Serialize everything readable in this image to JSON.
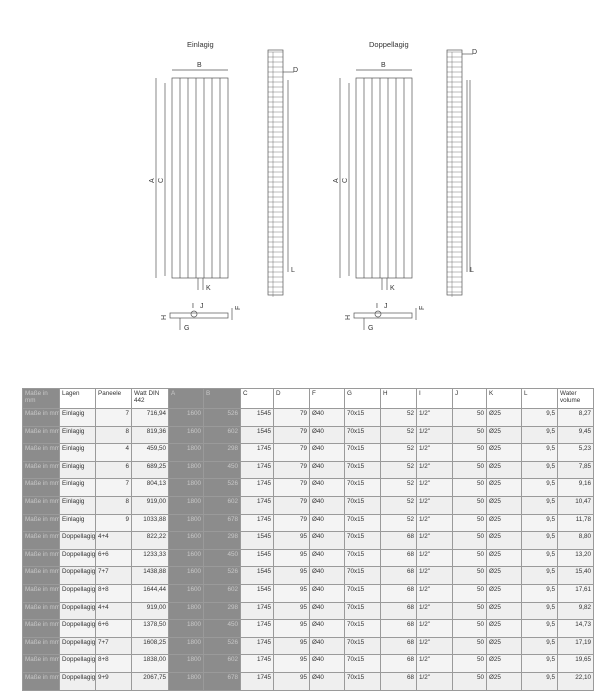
{
  "drawings": {
    "single": {
      "title": "Einlagig",
      "labels": {
        "A": "A",
        "B": "B",
        "C": "C",
        "D": "D",
        "F": "F",
        "G": "G",
        "H": "H",
        "I": "I",
        "J": "J",
        "K": "K",
        "L": "L"
      }
    },
    "double": {
      "title": "Doppellagig",
      "labels": {
        "A": "A",
        "B": "B",
        "C": "C",
        "D": "D",
        "F": "F",
        "G": "G",
        "H": "H",
        "I": "I",
        "J": "J",
        "K": "K",
        "L": "L"
      }
    }
  },
  "table": {
    "headers": [
      "Maße in mm",
      "Lagen",
      "Paneele",
      "Watt DIN 442",
      "A",
      "B",
      "C",
      "D",
      "F",
      "G",
      "H",
      "I",
      "J",
      "K",
      "L",
      "Water volume"
    ],
    "rows": [
      [
        "Maße in mm",
        "Einlagig",
        "7",
        "716,94",
        "1600",
        "526",
        "1545",
        "79",
        "Ø40",
        "70x15",
        "52",
        "1/2\"",
        "50",
        "Ø25",
        "9,5",
        "8,27"
      ],
      [
        "Maße in mm",
        "Einlagig",
        "8",
        "819,36",
        "1600",
        "602",
        "1545",
        "79",
        "Ø40",
        "70x15",
        "52",
        "1/2\"",
        "50",
        "Ø25",
        "9,5",
        "9,45"
      ],
      [
        "Maße in mm",
        "Einlagig",
        "4",
        "459,50",
        "1800",
        "298",
        "1745",
        "79",
        "Ø40",
        "70x15",
        "52",
        "1/2\"",
        "50",
        "Ø25",
        "9,5",
        "5,23"
      ],
      [
        "Maße in mm",
        "Einlagig",
        "6",
        "689,25",
        "1800",
        "450",
        "1745",
        "79",
        "Ø40",
        "70x15",
        "52",
        "1/2\"",
        "50",
        "Ø25",
        "9,5",
        "7,85"
      ],
      [
        "Maße in mm",
        "Einlagig",
        "7",
        "804,13",
        "1800",
        "526",
        "1745",
        "79",
        "Ø40",
        "70x15",
        "52",
        "1/2\"",
        "50",
        "Ø25",
        "9,5",
        "9,16"
      ],
      [
        "Maße in mm",
        "Einlagig",
        "8",
        "919,00",
        "1800",
        "602",
        "1745",
        "79",
        "Ø40",
        "70x15",
        "52",
        "1/2\"",
        "50",
        "Ø25",
        "9,5",
        "10,47"
      ],
      [
        "Maße in mm",
        "Einlagig",
        "9",
        "1033,88",
        "1800",
        "678",
        "1745",
        "79",
        "Ø40",
        "70x15",
        "52",
        "1/2\"",
        "50",
        "Ø25",
        "9,5",
        "11,78"
      ],
      [
        "Maße in mm",
        "Doppellagig",
        "4+4",
        "822,22",
        "1600",
        "298",
        "1545",
        "95",
        "Ø40",
        "70x15",
        "68",
        "1/2\"",
        "50",
        "Ø25",
        "9,5",
        "8,80"
      ],
      [
        "Maße in mm",
        "Doppellagig",
        "6+6",
        "1233,33",
        "1600",
        "450",
        "1545",
        "95",
        "Ø40",
        "70x15",
        "68",
        "1/2\"",
        "50",
        "Ø25",
        "9,5",
        "13,20"
      ],
      [
        "Maße in mm",
        "Doppellagig",
        "7+7",
        "1438,88",
        "1600",
        "526",
        "1545",
        "95",
        "Ø40",
        "70x15",
        "68",
        "1/2\"",
        "50",
        "Ø25",
        "9,5",
        "15,40"
      ],
      [
        "Maße in mm",
        "Doppellagig",
        "8+8",
        "1644,44",
        "1600",
        "602",
        "1545",
        "95",
        "Ø40",
        "70x15",
        "68",
        "1/2\"",
        "50",
        "Ø25",
        "9,5",
        "17,61"
      ],
      [
        "Maße in mm",
        "Doppellagig",
        "4+4",
        "919,00",
        "1800",
        "298",
        "1745",
        "95",
        "Ø40",
        "70x15",
        "68",
        "1/2\"",
        "50",
        "Ø25",
        "9,5",
        "9,82"
      ],
      [
        "Maße in mm",
        "Doppellagig",
        "6+6",
        "1378,50",
        "1800",
        "450",
        "1745",
        "95",
        "Ø40",
        "70x15",
        "68",
        "1/2\"",
        "50",
        "Ø25",
        "9,5",
        "14,73"
      ],
      [
        "Maße in mm",
        "Doppellagig",
        "7+7",
        "1608,25",
        "1800",
        "526",
        "1745",
        "95",
        "Ø40",
        "70x15",
        "68",
        "1/2\"",
        "50",
        "Ø25",
        "9,5",
        "17,19"
      ],
      [
        "Maße in mm",
        "Doppellagig",
        "8+8",
        "1838,00",
        "1800",
        "602",
        "1745",
        "95",
        "Ø40",
        "70x15",
        "68",
        "1/2\"",
        "50",
        "Ø25",
        "9,5",
        "19,65"
      ],
      [
        "Maße in mm",
        "Doppellagig",
        "9+9",
        "2067,75",
        "1800",
        "678",
        "1745",
        "95",
        "Ø40",
        "70x15",
        "68",
        "1/2\"",
        "50",
        "Ø25",
        "9,5",
        "22,10"
      ]
    ]
  }
}
